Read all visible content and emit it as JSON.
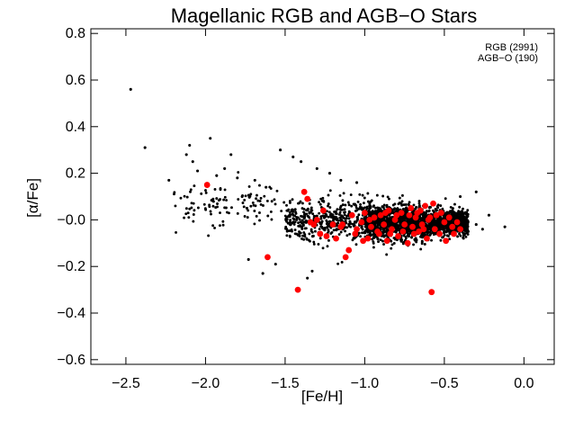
{
  "chart_data": {
    "type": "scatter",
    "title": "Magellanic RGB and AGB−O Stars",
    "xlabel": "[Fe/H]",
    "ylabel": "[α/Fe]",
    "xlim": [
      -2.72,
      0.19
    ],
    "ylim": [
      -0.62,
      0.82
    ],
    "xticks": [
      -2.5,
      -2.0,
      -1.5,
      -1.0,
      -0.5,
      0.0
    ],
    "xtick_labels": [
      "−2.5",
      "−2.0",
      "−1.5",
      "−1.0",
      "−0.5",
      "0.0"
    ],
    "yticks": [
      0.8,
      0.6,
      0.4,
      0.2,
      0.0,
      -0.2,
      -0.4,
      -0.6
    ],
    "ytick_labels": [
      "0.8",
      "0.6",
      "0.4",
      "0.2",
      "−0.0",
      "−0.2",
      "−0.4",
      "−0.6"
    ],
    "legend_placement": "top-right",
    "series": [
      {
        "name": "RGB (2991)",
        "label": "RGB (2991)",
        "color": "#000000",
        "marker": "small-dot",
        "points": [
          [
            -2.47,
            0.56
          ],
          [
            -2.38,
            0.31
          ],
          [
            -2.23,
            0.17
          ],
          [
            -2.12,
            0.28
          ],
          [
            -2.1,
            0.32
          ],
          [
            -2.08,
            0.25
          ],
          [
            -2.05,
            0.21
          ],
          [
            -1.97,
            0.35
          ],
          [
            -1.93,
            0.19
          ],
          [
            -1.88,
            0.22
          ],
          [
            -1.84,
            0.28
          ],
          [
            -1.8,
            0.18
          ],
          [
            -1.77,
            0.1
          ],
          [
            -1.74,
            0.05
          ],
          [
            -1.69,
            0.17
          ],
          [
            -1.62,
            0.14
          ],
          [
            -1.53,
            0.3
          ],
          [
            -1.45,
            0.27
          ],
          [
            -1.4,
            0.25
          ],
          [
            -1.3,
            0.22
          ],
          [
            -1.22,
            0.2
          ],
          [
            -1.15,
            0.17
          ],
          [
            -1.05,
            0.16
          ],
          [
            -1.73,
            -0.17
          ],
          [
            -1.64,
            -0.23
          ],
          [
            -1.56,
            -0.19
          ],
          [
            -1.36,
            -0.25
          ],
          [
            -1.33,
            -0.22
          ],
          [
            -0.12,
            -0.03
          ],
          [
            -0.22,
            0.02
          ],
          [
            -0.26,
            -0.04
          ],
          [
            -0.3,
            0.12
          ],
          [
            -0.4,
            0.1
          ],
          [
            -0.3,
            -0.02
          ],
          [
            -0.35,
            -0.05
          ]
        ],
        "cluster_samples": [
          {
            "x_range": [
              -2.2,
              -1.5
            ],
            "y_center": 0.07,
            "y_spread": 0.1,
            "count": 110
          },
          {
            "x_range": [
              -1.5,
              -1.0
            ],
            "y_center": 0.0,
            "y_spread": 0.1,
            "count": 420
          },
          {
            "x_range": [
              -1.0,
              -0.6
            ],
            "y_center": -0.01,
            "y_spread": 0.08,
            "count": 1200
          },
          {
            "x_range": [
              -0.6,
              -0.35
            ],
            "y_center": -0.01,
            "y_spread": 0.06,
            "count": 750
          }
        ]
      },
      {
        "name": "AGB-O (190)",
        "label": "AGB−O (190)",
        "color": "#ff0000",
        "marker": "circle",
        "points": [
          [
            -1.99,
            0.15
          ],
          [
            -1.61,
            -0.16
          ],
          [
            -1.42,
            -0.3
          ],
          [
            -1.38,
            0.12
          ],
          [
            -1.36,
            0.09
          ],
          [
            -1.34,
            -0.01
          ],
          [
            -1.3,
            0.0
          ],
          [
            -1.28,
            -0.06
          ],
          [
            -1.26,
            0.04
          ],
          [
            -1.24,
            -0.07
          ],
          [
            -1.2,
            -0.02
          ],
          [
            -1.18,
            -0.08
          ],
          [
            -1.15,
            -0.03
          ],
          [
            -1.12,
            -0.16
          ],
          [
            -1.1,
            -0.13
          ],
          [
            -1.08,
            0.02
          ],
          [
            -1.05,
            -0.04
          ],
          [
            -1.02,
            -0.01
          ],
          [
            -1.0,
            0.03
          ],
          [
            -0.98,
            -0.08
          ],
          [
            -0.96,
            -0.03
          ],
          [
            -0.94,
            0.01
          ],
          [
            -0.92,
            -0.05
          ],
          [
            -0.9,
            0.02
          ],
          [
            -0.88,
            -0.02
          ],
          [
            -0.86,
            -0.09
          ],
          [
            -0.85,
            0.04
          ],
          [
            -0.83,
            -0.04
          ],
          [
            -0.81,
            0.0
          ],
          [
            -0.79,
            -0.07
          ],
          [
            -0.77,
            0.03
          ],
          [
            -0.75,
            -0.02
          ],
          [
            -0.73,
            -0.1
          ],
          [
            -0.71,
            0.05
          ],
          [
            -0.7,
            -0.03
          ],
          [
            -0.68,
            0.01
          ],
          [
            -0.66,
            -0.05
          ],
          [
            -0.65,
            0.04
          ],
          [
            -0.64,
            -0.02
          ],
          [
            -0.62,
            0.06
          ],
          [
            -0.61,
            -0.08
          ],
          [
            -0.6,
            0.0
          ],
          [
            -0.58,
            -0.31
          ],
          [
            -0.57,
            0.07
          ],
          [
            -0.56,
            -0.04
          ],
          [
            -0.55,
            0.02
          ],
          [
            -0.53,
            -0.06
          ],
          [
            -0.52,
            0.03
          ],
          [
            -0.5,
            -0.01
          ],
          [
            -0.49,
            -0.09
          ],
          [
            -0.47,
            0.01
          ],
          [
            -0.45,
            -0.03
          ],
          [
            -0.44,
            -0.06
          ],
          [
            -0.42,
            -0.01
          ],
          [
            -0.4,
            -0.04
          ],
          [
            -1.32,
            -0.02
          ],
          [
            -1.14,
            -0.02
          ],
          [
            -1.06,
            -0.06
          ],
          [
            -1.01,
            -0.09
          ],
          [
            -0.97,
            0.0
          ],
          [
            -0.91,
            -0.06
          ],
          [
            -0.87,
            0.03
          ],
          [
            -0.84,
            -0.06
          ],
          [
            -0.8,
            0.02
          ],
          [
            -0.76,
            -0.05
          ],
          [
            -0.72,
            0.02
          ],
          [
            -0.69,
            -0.06
          ],
          [
            -0.67,
            0.03
          ],
          [
            -0.63,
            -0.04
          ],
          [
            -0.59,
            0.01
          ]
        ]
      }
    ]
  }
}
